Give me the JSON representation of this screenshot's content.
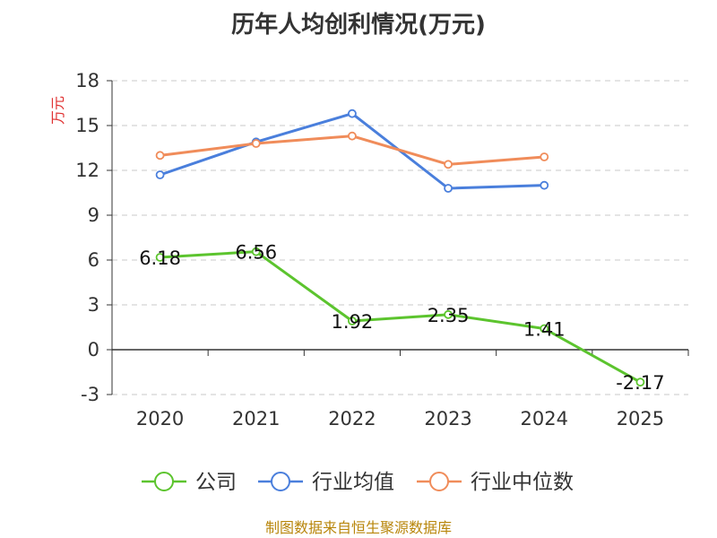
{
  "chart_data": {
    "type": "line",
    "title": "历年人均创利情况(万元)",
    "xlabel": "",
    "ylabel": "万元",
    "categories": [
      "2020",
      "2021",
      "2022",
      "2023",
      "2024",
      "2025"
    ],
    "ylim": [
      -3,
      18
    ],
    "yticks": [
      -3,
      0,
      3,
      6,
      9,
      12,
      15,
      18
    ],
    "ytick_labels": [
      "-3",
      "0",
      "3",
      "6",
      "9",
      "12",
      "15",
      "18"
    ],
    "grid": true,
    "legend_position": "bottom",
    "series": [
      {
        "name": "公司",
        "color": "#5cc42e",
        "values": [
          6.18,
          6.56,
          1.92,
          2.35,
          1.41,
          -2.17
        ],
        "labels": [
          "6.18",
          "6.56",
          "1.92",
          "2.35",
          "1.41",
          "-2.17"
        ]
      },
      {
        "name": "行业均值",
        "color": "#4a7fdc",
        "values": [
          11.7,
          13.9,
          15.8,
          10.8,
          11.0,
          null
        ]
      },
      {
        "name": "行业中位数",
        "color": "#f08c5a",
        "values": [
          13.0,
          13.8,
          14.3,
          12.4,
          12.9,
          null
        ]
      }
    ]
  },
  "source": "制图数据来自恒生聚源数据库"
}
